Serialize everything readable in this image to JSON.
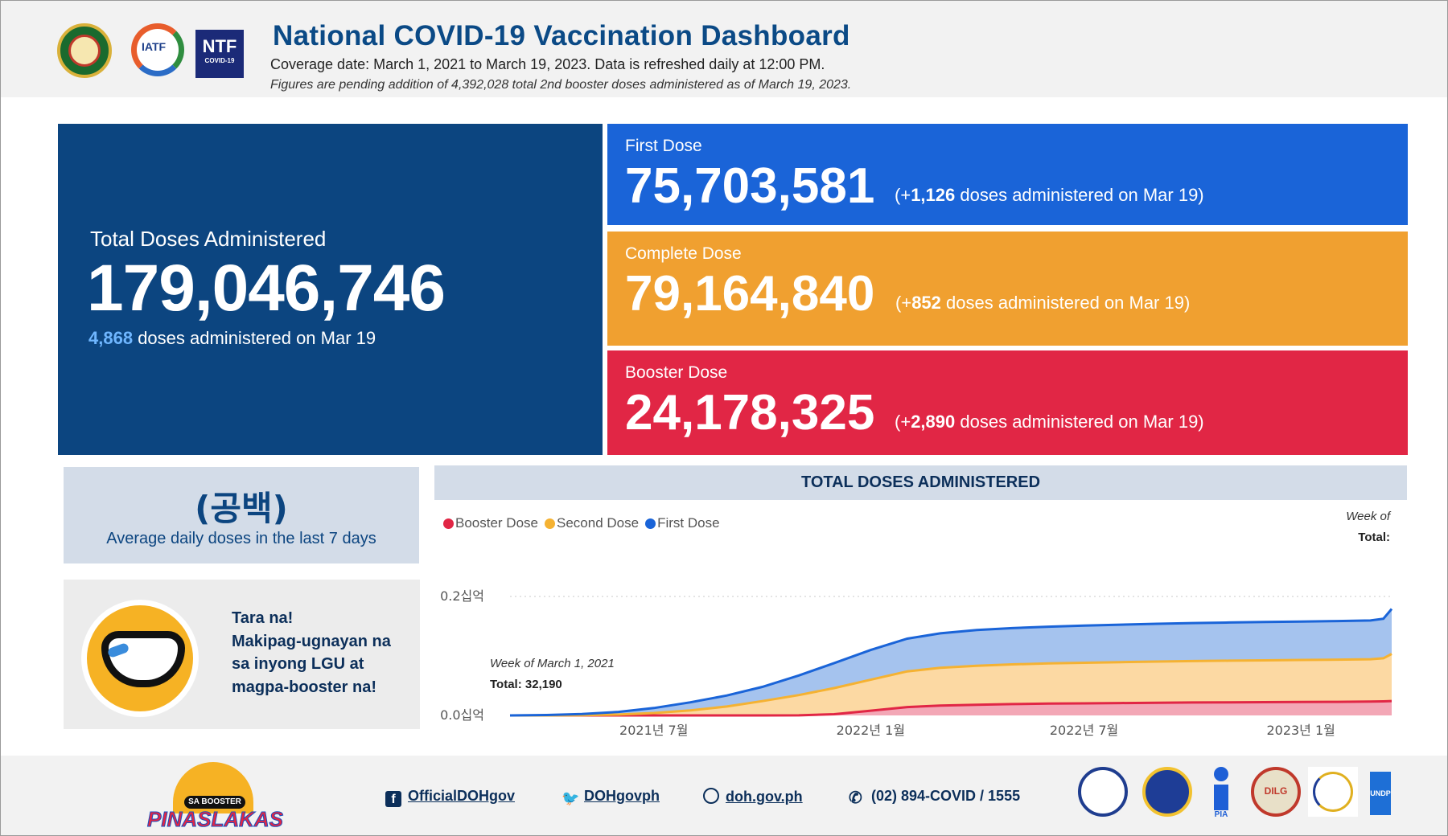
{
  "header": {
    "logos": {
      "doh": "doh-seal-icon",
      "iatf": "IATF",
      "ntf_big": "NTF",
      "ntf_small": "COVID-19"
    },
    "title": "National COVID-19 Vaccination Dashboard",
    "coverage": "Coverage date: March 1, 2021 to March 19, 2023. Data is refreshed daily at 12:00 PM.",
    "note": "Figures are pending addition of 4,392,028 total 2nd booster doses administered as of March 19, 2023."
  },
  "total": {
    "label": "Total Doses Administered",
    "value": "179,046,746",
    "daily_count": "4,868",
    "daily_text": "doses administered on Mar 19"
  },
  "kpis": {
    "first": {
      "label": "First Dose",
      "value": "75,703,581",
      "prefix": "(+",
      "increment": "1,126",
      "suffix": "doses administered on Mar 19)",
      "color": "#1a64d8"
    },
    "complete": {
      "label": "Complete Dose",
      "value": "79,164,840",
      "prefix": "(+",
      "increment": "852",
      "suffix": "doses administered on Mar 19)",
      "color": "#f0a030"
    },
    "booster": {
      "label": "Booster Dose",
      "value": "24,178,325",
      "prefix": "(+",
      "increment": "2,890",
      "suffix": "doses administered on Mar 19)",
      "color": "#e12645"
    }
  },
  "average": {
    "value": "(공백)",
    "label": "Average daily doses in the last 7 days"
  },
  "promo": {
    "lines": [
      "Tara na!",
      "Makipag-ugnayan na",
      "sa inyong LGU at",
      "magpa-booster na!"
    ]
  },
  "chart_header": "TOTAL DOSES ADMINISTERED",
  "chart_week_label": "Week of",
  "chart_total_label": "Total:",
  "chart_tooltip": {
    "week": "Week of March 1, 2021",
    "total": "Total: 32,190"
  },
  "chart_data": {
    "type": "area",
    "title": "TOTAL DOSES ADMINISTERED",
    "stacked": true,
    "y_tick_labels": [
      "0.0십억",
      "0.2십억"
    ],
    "y_ticks": [
      0,
      200000000
    ],
    "ylim": [
      0,
      250000000
    ],
    "x_tick_labels": [
      "2021년 7월",
      "2022년 1월",
      "2022년 7월",
      "2023년 1월"
    ],
    "x_tick_positions": [
      "2021-07-01",
      "2022-01-01",
      "2022-07-01",
      "2023-01-01"
    ],
    "xlim": [
      "2021-03-01",
      "2023-03-19"
    ],
    "x": [
      "2021-03-01",
      "2021-04-01",
      "2021-05-01",
      "2021-06-01",
      "2021-07-01",
      "2021-08-01",
      "2021-09-01",
      "2021-10-01",
      "2021-11-01",
      "2021-12-01",
      "2022-01-01",
      "2022-02-01",
      "2022-03-01",
      "2022-04-01",
      "2022-05-01",
      "2022-06-01",
      "2022-07-01",
      "2022-08-01",
      "2022-09-01",
      "2022-10-01",
      "2022-11-01",
      "2022-12-01",
      "2023-01-01",
      "2023-02-01",
      "2023-03-01",
      "2023-03-12",
      "2023-03-19"
    ],
    "series": [
      {
        "name": "Booster Dose",
        "color": "#e12645",
        "fill": "#f3a7b6",
        "values": [
          0,
          0,
          0,
          0,
          0,
          0,
          0,
          0,
          200000,
          2000000,
          8000000,
          14000000,
          16500000,
          18000000,
          19000000,
          19800000,
          20300000,
          20800000,
          21300000,
          21700000,
          22000000,
          22300000,
          22600000,
          22900000,
          23200000,
          23600000,
          24178325
        ]
      },
      {
        "name": "Second Dose",
        "color": "#f5b232",
        "fill": "#fcd9a3",
        "values": [
          0,
          40000,
          300000,
          1500000,
          4000000,
          8500000,
          15000000,
          24000000,
          34000000,
          44000000,
          52000000,
          60000000,
          63500000,
          65500000,
          66800000,
          67600000,
          68200000,
          68800000,
          69300000,
          69700000,
          70000000,
          70300000,
          70600000,
          70900000,
          71300000,
          72500000,
          79164840
        ]
      },
      {
        "name": "First Dose",
        "color": "#1a64d8",
        "fill": "#a5c3ee",
        "values": [
          32190,
          600000,
          2000000,
          4500000,
          8500000,
          13500000,
          18500000,
          24000000,
          33000000,
          42000000,
          50000000,
          55000000,
          58000000,
          60000000,
          61000000,
          61800000,
          62500000,
          63000000,
          63500000,
          63900000,
          64200000,
          64500000,
          64700000,
          64900000,
          65100000,
          66500000,
          75703581
        ]
      }
    ]
  },
  "legend": [
    {
      "label": "Booster Dose",
      "color": "#e12645"
    },
    {
      "label": "Second Dose",
      "color": "#f5b232"
    },
    {
      "label": "First Dose",
      "color": "#1a64d8"
    }
  ],
  "footer": {
    "brand_top": "SA BOOSTER",
    "brand_word_a": "PINAS",
    "brand_word_b": "LAKAS",
    "facebook": "OfficialDOHgov",
    "twitter": "DOHgovph",
    "website": "doh.gov.ph",
    "phone": "(02) 894-COVID / 1555",
    "agencies": [
      "PCOO seal",
      "PIA seal",
      "PIA",
      "DILG",
      "DICT seal",
      "UNDP"
    ],
    "agency_labels": {
      "pia": "PIA",
      "dilg": "DILG",
      "undp": "UNDP"
    }
  }
}
